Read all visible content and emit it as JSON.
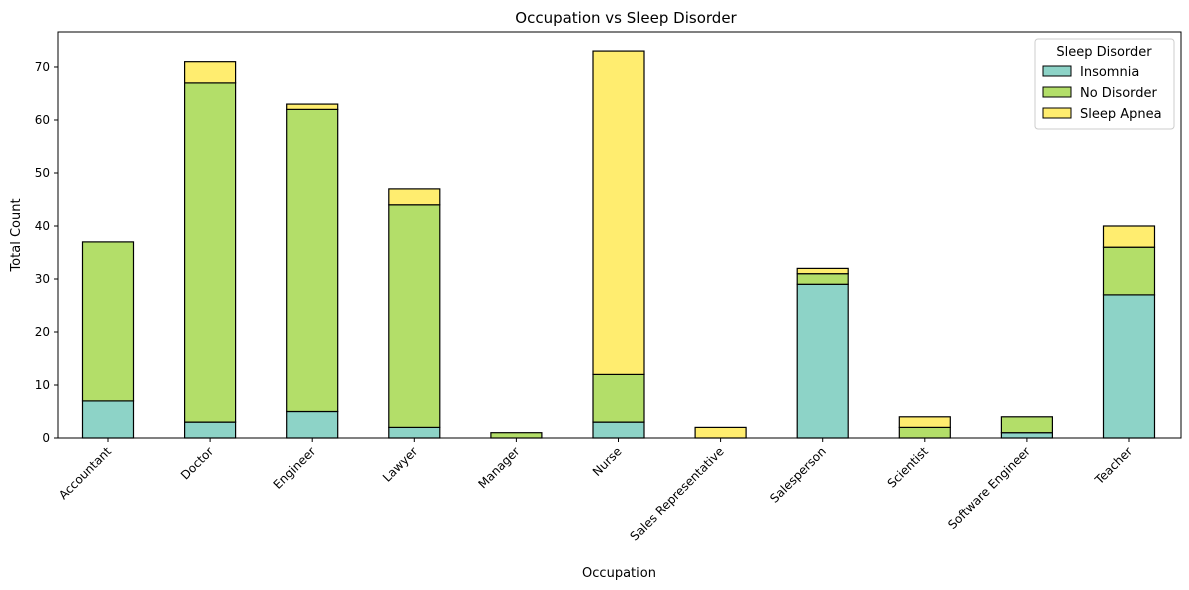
{
  "chart_data": {
    "type": "bar",
    "stacked": true,
    "title": "Occupation vs Sleep Disorder",
    "xlabel": "Occupation",
    "ylabel": "Total Count",
    "ylim": [
      0,
      76.6
    ],
    "yticks": [
      0,
      10,
      20,
      30,
      40,
      50,
      60,
      70
    ],
    "grid": false,
    "legend": {
      "title": "Sleep Disorder",
      "placement": "top-right"
    },
    "categories": [
      "Accountant",
      "Doctor",
      "Engineer",
      "Lawyer",
      "Manager",
      "Nurse",
      "Sales Representative",
      "Salesperson",
      "Scientist",
      "Software Engineer",
      "Teacher"
    ],
    "series": [
      {
        "name": "Insomnia",
        "color": "#8dd3c7",
        "values": [
          7,
          3,
          5,
          2,
          0,
          3,
          0,
          29,
          0,
          1,
          27
        ]
      },
      {
        "name": "No Disorder",
        "color": "#b3de69",
        "values": [
          30,
          64,
          57,
          42,
          1,
          9,
          0,
          2,
          2,
          3,
          9
        ]
      },
      {
        "name": "Sleep Apnea",
        "color": "#ffed6f",
        "values": [
          0,
          4,
          1,
          3,
          0,
          61,
          2,
          1,
          2,
          0,
          4
        ]
      }
    ]
  }
}
